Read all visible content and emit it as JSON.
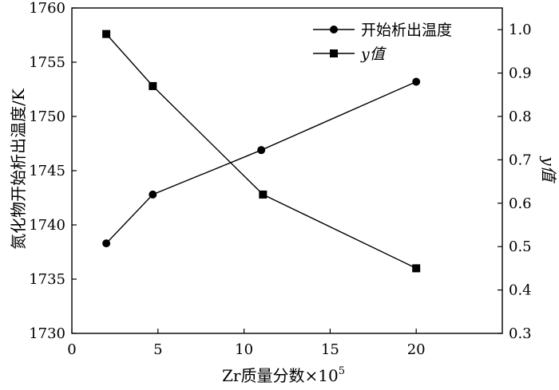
{
  "chart_data": {
    "type": "line",
    "xlabel": "Zr质量分数×10",
    "xlabel_sup": "5",
    "ylabel_left": "氮化物开始析出温度/K",
    "ylabel_right": "y值",
    "xlim": [
      0,
      25
    ],
    "ylim_left": [
      1730,
      1760
    ],
    "ylim_right": [
      0.3,
      1.05
    ],
    "xticks": [
      0,
      5,
      10,
      15,
      20
    ],
    "xtick_labels": [
      "0",
      "5",
      "10",
      "15",
      "20"
    ],
    "yticks_left": [
      1730,
      1735,
      1740,
      1745,
      1750,
      1755,
      1760
    ],
    "ytick_labels_left": [
      "1730",
      "1735",
      "1740",
      "1745",
      "1750",
      "1755",
      "1760"
    ],
    "yticks_right": [
      0.3,
      0.4,
      0.5,
      0.6,
      0.7,
      0.8,
      0.9,
      1.0
    ],
    "ytick_labels_right": [
      "0.3",
      "0.4",
      "0.5",
      "0.6",
      "0.7",
      "0.8",
      "0.9",
      "1.0"
    ],
    "legend_position": "top-right",
    "series": [
      {
        "name": "开始析出温度",
        "axis": "left",
        "marker": "circle",
        "x": [
          2,
          4.7,
          11,
          20
        ],
        "values": [
          1738.3,
          1742.8,
          1746.9,
          1753.2
        ]
      },
      {
        "name": "y值",
        "axis": "right",
        "marker": "square",
        "x": [
          2,
          4.7,
          11.1,
          20
        ],
        "values": [
          0.99,
          0.87,
          0.62,
          0.45
        ]
      }
    ]
  }
}
